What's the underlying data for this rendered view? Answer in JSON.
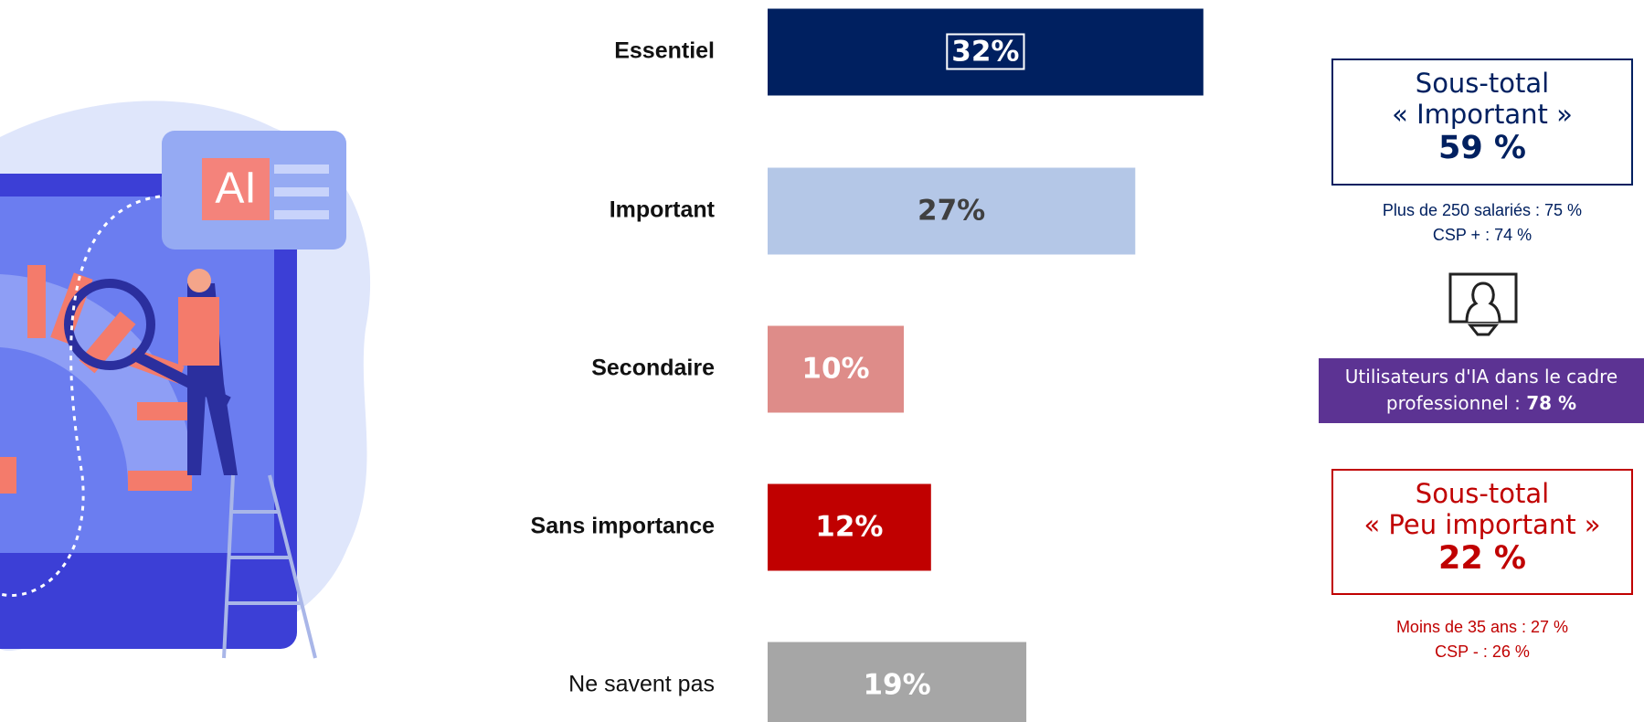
{
  "chart_data": {
    "type": "bar",
    "orientation": "horizontal",
    "categories": [
      "Essentiel",
      "Important",
      "Secondaire",
      "Sans importance",
      "Ne savent pas"
    ],
    "category_bold": [
      true,
      true,
      true,
      true,
      false
    ],
    "values": [
      32,
      27,
      10,
      12,
      19
    ],
    "value_labels": [
      "32%",
      "27%",
      "10%",
      "12%",
      "19%"
    ],
    "colors": [
      "#002060",
      "#b4c7e7",
      "#de8c89",
      "#c00000",
      "#a6a6a6"
    ],
    "label_colors": [
      "#ffffff",
      "#404040",
      "#ffffff",
      "#ffffff",
      "#ffffff"
    ]
  },
  "illustration": {
    "label": "AI"
  },
  "sidebar": {
    "important": {
      "lines": [
        "Sous-total",
        "« Important »"
      ],
      "total": "59 %",
      "details": [
        "Plus de 250 salariés : 75 %",
        "CSP + : 74 %"
      ]
    },
    "users": {
      "text": "Utilisateurs d'IA dans le cadre professionnel : ",
      "value": "78 %"
    },
    "peu_important": {
      "lines": [
        "Sous-total",
        "« Peu important »"
      ],
      "total": "22 %",
      "details": [
        "Moins de 35 ans : 27 %",
        "CSP - : 26 %"
      ]
    }
  }
}
